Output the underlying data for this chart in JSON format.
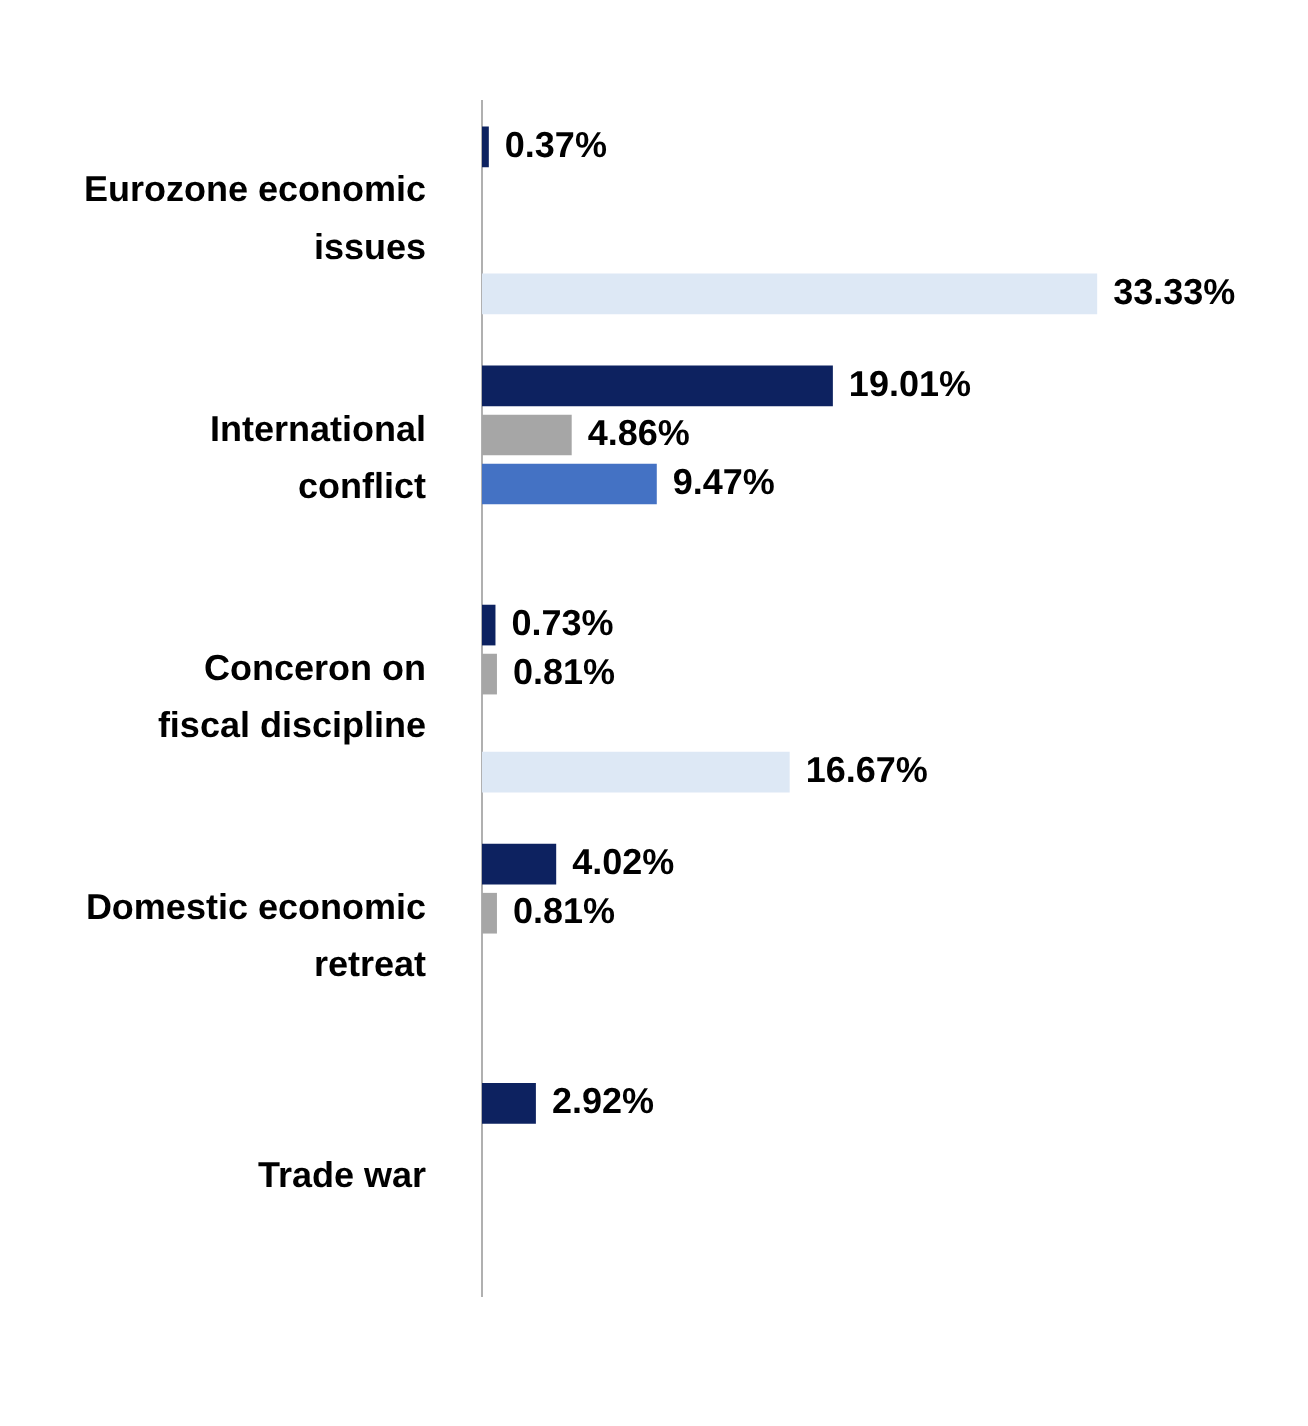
{
  "chart_data": {
    "type": "bar",
    "orientation": "horizontal",
    "categories": [
      "Eurozone economic issues",
      "International conflict",
      "Conceron on fiscal discipline",
      "Domestic economic retreat",
      "Trade war"
    ],
    "series": [
      {
        "color": "#0d2260",
        "values": [
          0.37,
          19.01,
          0.73,
          4.02,
          2.92
        ],
        "value_labels": [
          "0.37%",
          "19.01%",
          "0.73%",
          "4.02%",
          "2.92%"
        ]
      },
      {
        "color": "#a6a6a6",
        "values": [
          null,
          4.86,
          0.81,
          0.81,
          null
        ],
        "value_labels": [
          null,
          "4.86%",
          "0.81%",
          "0.81%",
          null
        ]
      },
      {
        "color": "#4472c4",
        "values": [
          null,
          9.47,
          null,
          null,
          null
        ],
        "value_labels": [
          null,
          "9.47%",
          null,
          null,
          null
        ]
      },
      {
        "color": "#dde8f5",
        "values": [
          33.33,
          null,
          16.67,
          null,
          null
        ],
        "value_labels": [
          "33.33%",
          null,
          "16.67%",
          null,
          null
        ]
      }
    ]
  }
}
